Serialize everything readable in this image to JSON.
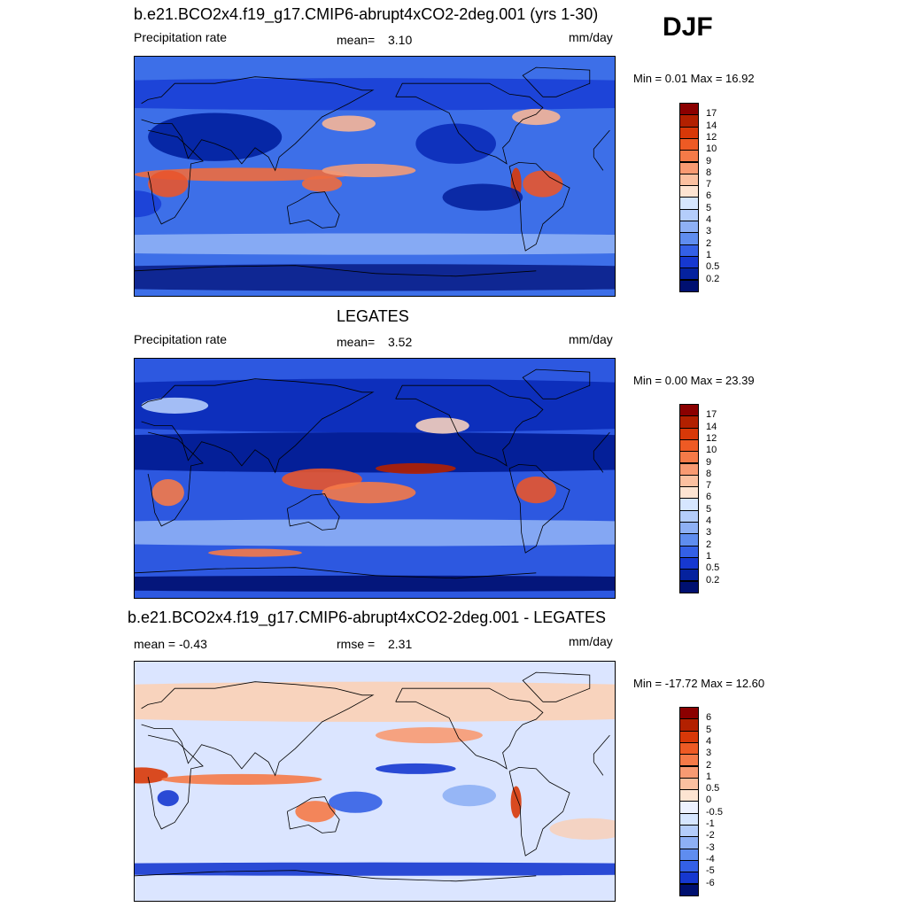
{
  "season": "DJF",
  "panels": [
    {
      "title": "b.e21.BCO2x4.f19_g17.CMIP6-abrupt4xCO2-2deg.001 (yrs 1-30)",
      "left_label": "Precipitation rate",
      "stat_label": "mean=",
      "stat_value": "3.10",
      "units": "mm/day",
      "minmax": "Min =   0.01 Max =  16.92",
      "colorbar": {
        "labels": [
          "17",
          "14",
          "12",
          "10",
          "9",
          "8",
          "7",
          "6",
          "5",
          "4",
          "3",
          "2",
          "1",
          "0.5",
          "0.2"
        ],
        "colors": [
          "#8b0000",
          "#b22000",
          "#d83808",
          "#ee5a24",
          "#f57a48",
          "#f89a72",
          "#fbc0a0",
          "#fde4d2",
          "#d6e6ff",
          "#b4cdfb",
          "#8eb0f5",
          "#5f8def",
          "#3460e6",
          "#1638d0",
          "#05229e",
          "#001070"
        ]
      },
      "map": {
        "background": "#3d6fe8",
        "blobs": [
          {
            "lon": 0,
            "lat": 62,
            "rx": 360,
            "ry": 12,
            "color": "#1a3fd6"
          },
          {
            "lon": 60,
            "lat": 30,
            "rx": 50,
            "ry": 18,
            "color": "#001f9e"
          },
          {
            "lon": -120,
            "lat": 25,
            "rx": 30,
            "ry": 15,
            "color": "#0a2bb8"
          },
          {
            "lon": 160,
            "lat": 40,
            "rx": 20,
            "ry": 6,
            "color": "#f6b597"
          },
          {
            "lon": -60,
            "lat": 45,
            "rx": 18,
            "ry": 6,
            "color": "#f6b597"
          },
          {
            "lon": 80,
            "lat": 2,
            "rx": 80,
            "ry": 5,
            "color": "#ee6b3e"
          },
          {
            "lon": 175,
            "lat": 5,
            "rx": 35,
            "ry": 5,
            "color": "#f29b78"
          },
          {
            "lon": 25,
            "lat": -5,
            "rx": 15,
            "ry": 10,
            "color": "#e8552c"
          },
          {
            "lon": -55,
            "lat": -5,
            "rx": 15,
            "ry": 10,
            "color": "#e8552c"
          },
          {
            "lon": -75,
            "lat": -5,
            "rx": 4,
            "ry": 12,
            "color": "#d83808"
          },
          {
            "lon": 140,
            "lat": -5,
            "rx": 15,
            "ry": 6,
            "color": "#ee6b3e"
          },
          {
            "lon": 0,
            "lat": -50,
            "rx": 360,
            "ry": 8,
            "color": "#8eb0f5"
          },
          {
            "lon": 0,
            "lat": -75,
            "rx": 360,
            "ry": 10,
            "color": "#0a1f8a"
          },
          {
            "lon": -100,
            "lat": -15,
            "rx": 30,
            "ry": 10,
            "color": "#05229e"
          },
          {
            "lon": 0,
            "lat": -20,
            "rx": 20,
            "ry": 10,
            "color": "#1a3fd6"
          }
        ]
      }
    },
    {
      "title": "LEGATES",
      "left_label": "Precipitation rate",
      "stat_label": "mean=",
      "stat_value": "3.52",
      "units": "mm/day",
      "minmax": "Min =   0.00 Max =  23.39",
      "colorbar": {
        "labels": [
          "17",
          "14",
          "12",
          "10",
          "9",
          "8",
          "7",
          "6",
          "5",
          "4",
          "3",
          "2",
          "1",
          "0.5",
          "0.2"
        ],
        "colors": [
          "#8b0000",
          "#b22000",
          "#d83808",
          "#ee5a24",
          "#f57a48",
          "#f89a72",
          "#fbc0a0",
          "#fde4d2",
          "#d6e6ff",
          "#b4cdfb",
          "#8eb0f5",
          "#5f8def",
          "#3460e6",
          "#1638d0",
          "#05229e",
          "#001070"
        ]
      },
      "map": {
        "background": "#2d58e0",
        "blobs": [
          {
            "lon": 0,
            "lat": 55,
            "rx": 360,
            "ry": 20,
            "color": "#0a2bb8"
          },
          {
            "lon": 0,
            "lat": 20,
            "rx": 360,
            "ry": 15,
            "color": "#001a90"
          },
          {
            "lon": -130,
            "lat": 40,
            "rx": 20,
            "ry": 6,
            "color": "#f6d0bd"
          },
          {
            "lon": 30,
            "lat": 55,
            "rx": 25,
            "ry": 6,
            "color": "#b4cdfb"
          },
          {
            "lon": -150,
            "lat": 8,
            "rx": 30,
            "ry": 4,
            "color": "#b22000"
          },
          {
            "lon": 140,
            "lat": 0,
            "rx": 30,
            "ry": 8,
            "color": "#e8552c"
          },
          {
            "lon": 175,
            "lat": -10,
            "rx": 35,
            "ry": 8,
            "color": "#f57a48"
          },
          {
            "lon": 25,
            "lat": -10,
            "rx": 12,
            "ry": 10,
            "color": "#f57a48"
          },
          {
            "lon": -60,
            "lat": -8,
            "rx": 15,
            "ry": 10,
            "color": "#e8552c"
          },
          {
            "lon": 90,
            "lat": -55,
            "rx": 35,
            "ry": 3,
            "color": "#f57a48"
          },
          {
            "lon": 0,
            "lat": -40,
            "rx": 360,
            "ry": 10,
            "color": "#8eb0f5"
          },
          {
            "lon": 0,
            "lat": -78,
            "rx": 360,
            "ry": 6,
            "color": "#001070"
          }
        ]
      }
    },
    {
      "title": "b.e21.BCO2x4.f19_g17.CMIP6-abrupt4xCO2-2deg.001 - LEGATES",
      "left_label": "mean =  -0.43",
      "stat_label": "rmse =",
      "stat_value": "2.31",
      "units": "mm/day",
      "minmax": "Min = -17.72 Max =  12.60",
      "colorbar": {
        "labels": [
          "6",
          "5",
          "4",
          "3",
          "2",
          "1",
          "0.5",
          "0",
          "-0.5",
          "-1",
          "-2",
          "-3",
          "-4",
          "-5",
          "-6"
        ],
        "colors": [
          "#8b0000",
          "#b22000",
          "#d83808",
          "#ee5a24",
          "#f57a48",
          "#f89a72",
          "#fbc0a0",
          "#fde4d2",
          "#eef2ff",
          "#d6e6ff",
          "#b4cdfb",
          "#8eb0f5",
          "#5f8def",
          "#3460e6",
          "#1638d0",
          "#001070"
        ]
      },
      "map": {
        "background": "#dbe5ff",
        "blobs": [
          {
            "lon": 0,
            "lat": 60,
            "rx": 360,
            "ry": 15,
            "color": "#fbd0b6"
          },
          {
            "lon": -140,
            "lat": 35,
            "rx": 40,
            "ry": 6,
            "color": "#f89a72"
          },
          {
            "lon": -150,
            "lat": 10,
            "rx": 30,
            "ry": 4,
            "color": "#1638d0"
          },
          {
            "lon": 5,
            "lat": 5,
            "rx": 20,
            "ry": 6,
            "color": "#d83808"
          },
          {
            "lon": 25,
            "lat": -12,
            "rx": 8,
            "ry": 6,
            "color": "#1638d0"
          },
          {
            "lon": 135,
            "lat": -22,
            "rx": 15,
            "ry": 8,
            "color": "#f57a48"
          },
          {
            "lon": 165,
            "lat": -15,
            "rx": 20,
            "ry": 8,
            "color": "#3460e6"
          },
          {
            "lon": -75,
            "lat": -15,
            "rx": 4,
            "ry": 12,
            "color": "#d83808"
          },
          {
            "lon": 80,
            "lat": 2,
            "rx": 60,
            "ry": 4,
            "color": "#f57a48"
          },
          {
            "lon": 0,
            "lat": -65,
            "rx": 360,
            "ry": 5,
            "color": "#1638d0"
          },
          {
            "lon": -20,
            "lat": -35,
            "rx": 30,
            "ry": 8,
            "color": "#f6d0bd"
          },
          {
            "lon": -110,
            "lat": -10,
            "rx": 20,
            "ry": 8,
            "color": "#8eb0f5"
          }
        ]
      }
    }
  ]
}
